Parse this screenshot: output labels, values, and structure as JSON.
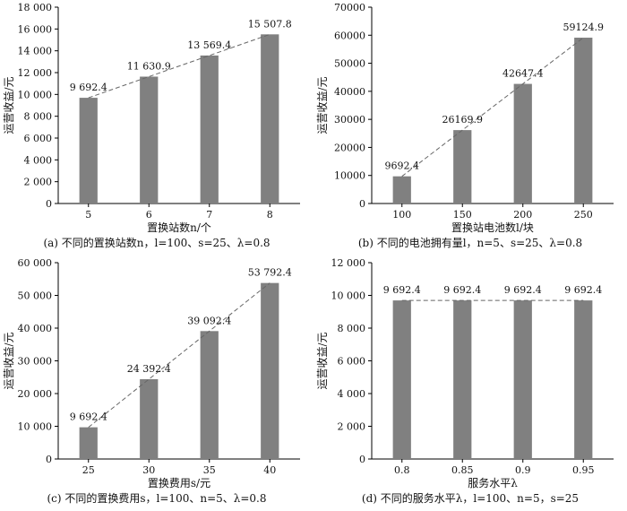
{
  "colors": {
    "bar": "#808080",
    "axis": "#000000",
    "trend": "#666666"
  },
  "chart_data": [
    {
      "type": "bar",
      "caption": "(a)  不同的置换站数n，l=100、s=25、λ=0.8",
      "categories": [
        "5",
        "6",
        "7",
        "8"
      ],
      "values": [
        9692.4,
        11630.9,
        13569.4,
        15507.8
      ],
      "value_labels": [
        "9 692.4",
        "11 630.9",
        "13 569.4",
        "15 507.8"
      ],
      "xlabel": "置换站数n/个",
      "ylabel": "运营收益/元",
      "ylim": [
        0,
        18000
      ],
      "yticks": [
        0,
        2000,
        4000,
        6000,
        8000,
        10000,
        12000,
        14000,
        16000,
        18000
      ],
      "ytick_labels": [
        "0",
        "2 000",
        "4 000",
        "6 000",
        "8 000",
        "10 000",
        "12 000",
        "14 000",
        "16 000",
        "18 000"
      ],
      "trendline": "dashed"
    },
    {
      "type": "bar",
      "caption": "(b)  不同的电池拥有量l，n=5、s=25、λ=0.8",
      "categories": [
        "100",
        "150",
        "200",
        "250"
      ],
      "values": [
        9692.4,
        26169.9,
        42647.4,
        59124.9
      ],
      "value_labels": [
        "9692.4",
        "26169.9",
        "42647.4",
        "59124.9"
      ],
      "xlabel": "置换站电池数l/块",
      "ylabel": "运营收益/元",
      "ylim": [
        0,
        70000
      ],
      "yticks": [
        0,
        10000,
        20000,
        30000,
        40000,
        50000,
        60000,
        70000
      ],
      "ytick_labels": [
        "0",
        "10000",
        "20000",
        "30000",
        "40000",
        "50000",
        "60000",
        "70000"
      ],
      "trendline": "dashed"
    },
    {
      "type": "bar",
      "caption": "(c)  不同的置换费用s，l=100、n=5、λ=0.8",
      "categories": [
        "25",
        "30",
        "35",
        "40"
      ],
      "values": [
        9692.4,
        24392.4,
        39092.4,
        53792.4
      ],
      "value_labels": [
        "9 692.4",
        "24 392.4",
        "39 092.4",
        "53 792.4"
      ],
      "xlabel": "置换费用s/元",
      "ylabel": "运营收益/元",
      "ylim": [
        0,
        60000
      ],
      "yticks": [
        0,
        10000,
        20000,
        30000,
        40000,
        50000,
        60000
      ],
      "ytick_labels": [
        "0",
        "10 000",
        "20 000",
        "30 000",
        "40 000",
        "50 000",
        "60 000"
      ],
      "trendline": "dashed"
    },
    {
      "type": "bar",
      "caption": "(d)  不同的服务水平λ，l=100、n=5，s=25",
      "categories": [
        "0.8",
        "0.85",
        "0.9",
        "0.95"
      ],
      "values": [
        9692.4,
        9692.4,
        9692.4,
        9692.4
      ],
      "value_labels": [
        "9 692.4",
        "9 692.4",
        "9 692.4",
        "9 692.4"
      ],
      "xlabel": "服务水平λ",
      "ylabel": "运营收益/元",
      "ylim": [
        0,
        12000
      ],
      "yticks": [
        0,
        2000,
        4000,
        6000,
        8000,
        10000,
        12000
      ],
      "ytick_labels": [
        "0",
        "2 000",
        "4 000",
        "6 000",
        "8 000",
        "10 000",
        "12 000"
      ],
      "trendline": "dashed"
    }
  ]
}
